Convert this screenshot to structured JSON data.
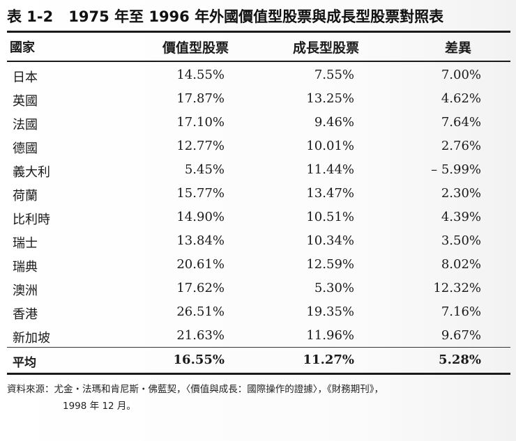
{
  "caption": {
    "label": "表 1-2",
    "title": "1975 年至 1996 年外國價值型股票與成長型股票對照表"
  },
  "table": {
    "headers": {
      "country": "國家",
      "value": "價值型股票",
      "growth": "成長型股票",
      "difference": "差異"
    },
    "rows": [
      {
        "country": "日本",
        "value": "14.55%",
        "growth": "7.55%",
        "difference": "7.00%"
      },
      {
        "country": "英國",
        "value": "17.87%",
        "growth": "13.25%",
        "difference": "4.62%"
      },
      {
        "country": "法國",
        "value": "17.10%",
        "growth": "9.46%",
        "difference": "7.64%"
      },
      {
        "country": "德國",
        "value": "12.77%",
        "growth": "10.01%",
        "difference": "2.76%"
      },
      {
        "country": "義大利",
        "value": "5.45%",
        "growth": "11.44%",
        "difference": "– 5.99%"
      },
      {
        "country": "荷蘭",
        "value": "15.77%",
        "growth": "13.47%",
        "difference": "2.30%"
      },
      {
        "country": "比利時",
        "value": "14.90%",
        "growth": "10.51%",
        "difference": "4.39%"
      },
      {
        "country": "瑞士",
        "value": "13.84%",
        "growth": "10.34%",
        "difference": "3.50%"
      },
      {
        "country": "瑞典",
        "value": "20.61%",
        "growth": "12.59%",
        "difference": "8.02%"
      },
      {
        "country": "澳洲",
        "value": "17.62%",
        "growth": "5.30%",
        "difference": "12.32%"
      },
      {
        "country": "香港",
        "value": "26.51%",
        "growth": "19.35%",
        "difference": "7.16%"
      },
      {
        "country": "新加坡",
        "value": "21.63%",
        "growth": "11.96%",
        "difference": "9.67%"
      }
    ],
    "average": {
      "country": "平均",
      "value": "16.55%",
      "growth": "11.27%",
      "difference": "5.28%"
    }
  },
  "source": {
    "line1": "資料來源：尤金・法瑪和肯尼斯・佛藍契，〈價值與成長：國際操作的證據〉，《財務期刊》，",
    "line2": "1998 年 12 月。"
  }
}
